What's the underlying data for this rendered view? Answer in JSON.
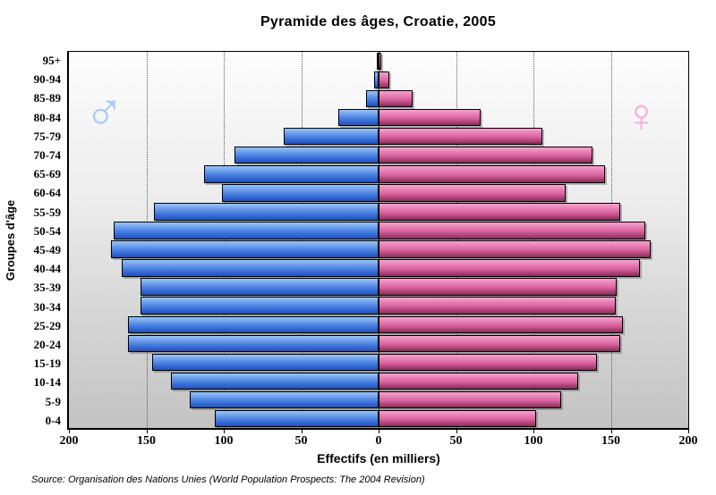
{
  "chart_data": {
    "type": "bar",
    "subtype": "population_pyramid",
    "title": "Pyramide des âges, Croatie, 2005",
    "xlabel": "Effectifs (en milliers)",
    "ylabel": "Groupes d'âge",
    "source": "Source: Organisation des Nations Unies (World Population Prospects: The 2004 Revision)",
    "age_groups": [
      "95+",
      "90-94",
      "85-89",
      "80-84",
      "75-79",
      "70-74",
      "65-69",
      "60-64",
      "55-59",
      "50-54",
      "45-49",
      "40-44",
      "35-39",
      "30-34",
      "25-29",
      "20-24",
      "15-19",
      "10-14",
      "5-9",
      "0-4"
    ],
    "series": [
      {
        "name": "Hommes",
        "side": "left",
        "symbol": "♂",
        "symbol_color": "#a6cbf3",
        "color_top": "#9ac4f4",
        "color_mid": "#4a80e0",
        "color_bottom": "#1c50c2",
        "values": [
          1,
          3,
          8,
          26,
          61,
          93,
          113,
          101,
          145,
          171,
          173,
          166,
          154,
          154,
          162,
          162,
          146,
          134,
          122,
          106
        ]
      },
      {
        "name": "Femmes",
        "side": "right",
        "symbol": "♀",
        "symbol_color": "#f9abd3",
        "color_top": "#f4a3cd",
        "color_mid": "#d9629f",
        "color_bottom": "#8c2959",
        "values": [
          2,
          7,
          22,
          66,
          106,
          138,
          146,
          121,
          156,
          172,
          176,
          169,
          154,
          153,
          158,
          156,
          141,
          129,
          118,
          102
        ]
      }
    ],
    "xlim": [
      -200,
      200
    ],
    "xtick_values": [
      -200,
      -150,
      -100,
      -50,
      0,
      50,
      100,
      150,
      200
    ],
    "xtick_labels": [
      "200",
      "150",
      "100",
      "50",
      "0",
      "50",
      "100",
      "150",
      "200"
    ],
    "grid": true,
    "gridline_values": [
      -150,
      -100,
      -50,
      50,
      100,
      150
    ],
    "legend_position": "none"
  }
}
